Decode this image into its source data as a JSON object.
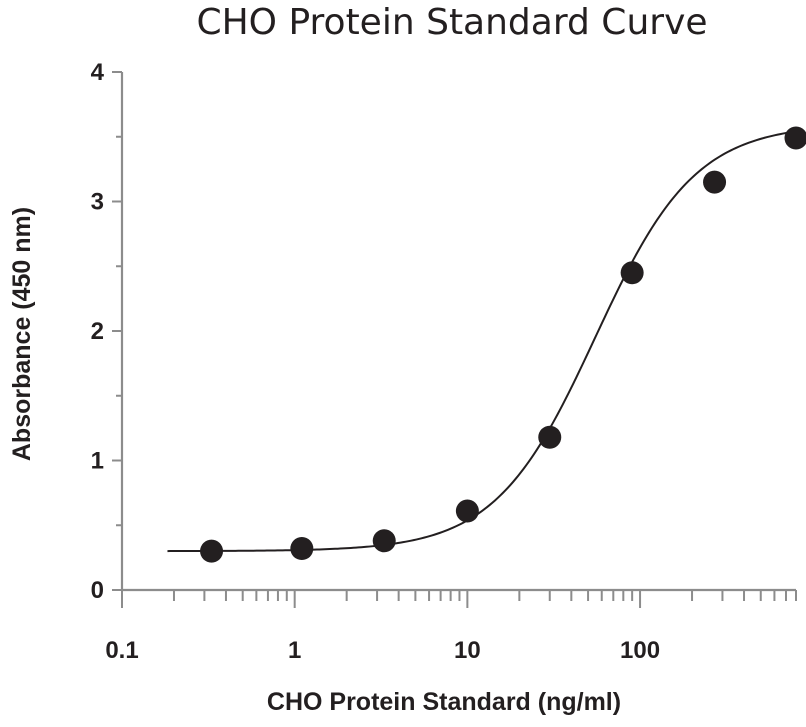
{
  "chart_data": {
    "type": "scatter",
    "title": "CHO Protein Standard Curve",
    "xlabel": "CHO Protein Standard (ng/ml)",
    "ylabel": "Absorbance (450 nm)",
    "x_scale": "log",
    "xlim": [
      0.1,
      800
    ],
    "ylim": [
      0,
      4
    ],
    "x_ticks": [
      {
        "value": 0.1,
        "label": "0.1"
      },
      {
        "value": 1,
        "label": "1"
      },
      {
        "value": 10,
        "label": "10"
      },
      {
        "value": 100,
        "label": "100"
      }
    ],
    "y_ticks": [
      {
        "value": 0,
        "label": "0"
      },
      {
        "value": 1,
        "label": "1"
      },
      {
        "value": 2,
        "label": "2"
      },
      {
        "value": 3,
        "label": "3"
      },
      {
        "value": 4,
        "label": "4"
      }
    ],
    "grid": false,
    "series": [
      {
        "points": [
          {
            "x": 0.33,
            "y": 0.3
          },
          {
            "x": 1.1,
            "y": 0.32
          },
          {
            "x": 3.3,
            "y": 0.38
          },
          {
            "x": 10,
            "y": 0.61
          },
          {
            "x": 30,
            "y": 1.18
          },
          {
            "x": 90,
            "y": 2.45
          },
          {
            "x": 270,
            "y": 3.15
          },
          {
            "x": 800,
            "y": 3.49
          }
        ]
      }
    ],
    "fit_curve": {
      "bottom": 0.3,
      "top": 3.6,
      "ec50": 55,
      "hill": 1.5
    }
  }
}
